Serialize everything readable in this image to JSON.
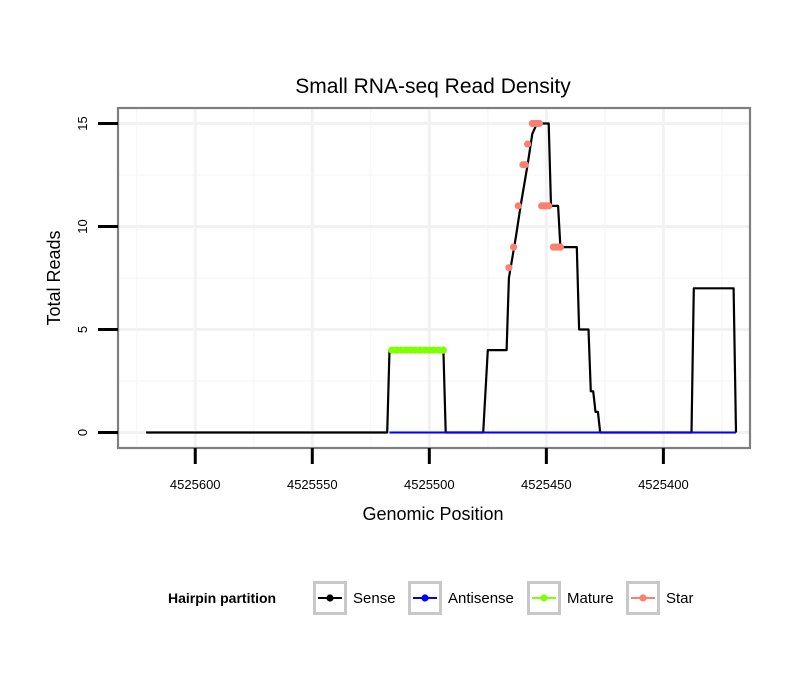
{
  "chart_data": {
    "type": "line",
    "title": "Small RNA-seq Read Density",
    "xlabel": "Genomic Position",
    "ylabel": "Total Reads",
    "xlim": [
      4525633,
      4525363
    ],
    "ylim": [
      -0.75,
      15.75
    ],
    "x_ticks": [
      4525600,
      4525550,
      4525500,
      4525450,
      4525400
    ],
    "x_tick_labels": [
      "4525600",
      "4525550",
      "4525500",
      "4525450",
      "4525400"
    ],
    "y_ticks": [
      0,
      5,
      10,
      15
    ],
    "y_tick_labels": [
      "0",
      "5",
      "10",
      "15"
    ],
    "grid": true,
    "legend_position": "bottom",
    "legend": {
      "title": "Hairpin partition",
      "entries": [
        "Sense",
        "Antisense",
        "Mature",
        "Star"
      ]
    },
    "series": [
      {
        "name": "Sense",
        "color": "#000000",
        "points": [
          [
            4525621,
            0
          ],
          [
            4525518,
            0
          ],
          [
            4525517,
            4
          ],
          [
            4525494,
            4
          ],
          [
            4525493,
            0
          ],
          [
            4525477,
            0
          ],
          [
            4525475,
            4
          ],
          [
            4525467,
            4
          ],
          [
            4525466,
            7.5
          ],
          [
            4525463,
            9.5
          ],
          [
            4525461,
            11
          ],
          [
            4525458,
            13
          ],
          [
            4525456,
            14.5
          ],
          [
            4525454,
            15
          ],
          [
            4525449,
            15
          ],
          [
            4525448,
            11
          ],
          [
            4525445,
            11
          ],
          [
            4525444,
            9
          ],
          [
            4525437,
            9
          ],
          [
            4525436,
            5
          ],
          [
            4525432,
            5
          ],
          [
            4525431,
            2
          ],
          [
            4525430,
            2
          ],
          [
            4525429,
            1
          ],
          [
            4525428,
            1
          ],
          [
            4525427,
            0
          ],
          [
            4525388,
            0
          ],
          [
            4525387,
            7
          ],
          [
            4525370,
            7
          ],
          [
            4525369,
            0
          ]
        ]
      },
      {
        "name": "Antisense",
        "color": "#0000ff",
        "points": [
          [
            4525517,
            0
          ],
          [
            4525369,
            0
          ]
        ]
      },
      {
        "name": "Mature",
        "color": "#7fff00",
        "points": [
          [
            4525516,
            4
          ],
          [
            4525514,
            4
          ],
          [
            4525512,
            4
          ],
          [
            4525510,
            4
          ],
          [
            4525508,
            4
          ],
          [
            4525506,
            4
          ],
          [
            4525504,
            4
          ],
          [
            4525502,
            4
          ],
          [
            4525500,
            4
          ],
          [
            4525498,
            4
          ],
          [
            4525496,
            4
          ],
          [
            4525494,
            4
          ]
        ]
      },
      {
        "name": "Star",
        "color": "#fa8072",
        "points": [
          [
            4525466,
            8
          ],
          [
            4525464,
            9
          ],
          [
            4525462,
            11
          ],
          [
            4525460,
            13
          ],
          [
            4525459,
            13
          ],
          [
            4525458,
            14
          ],
          [
            4525456,
            15
          ],
          [
            4525455,
            15
          ],
          [
            4525454,
            15
          ],
          [
            4525453,
            15
          ],
          [
            4525452,
            11
          ],
          [
            4525451,
            11
          ],
          [
            4525450,
            11
          ],
          [
            4525449,
            11
          ],
          [
            4525447,
            9
          ],
          [
            4525446,
            9
          ],
          [
            4525445,
            9
          ],
          [
            4525444,
            9
          ]
        ]
      }
    ]
  }
}
